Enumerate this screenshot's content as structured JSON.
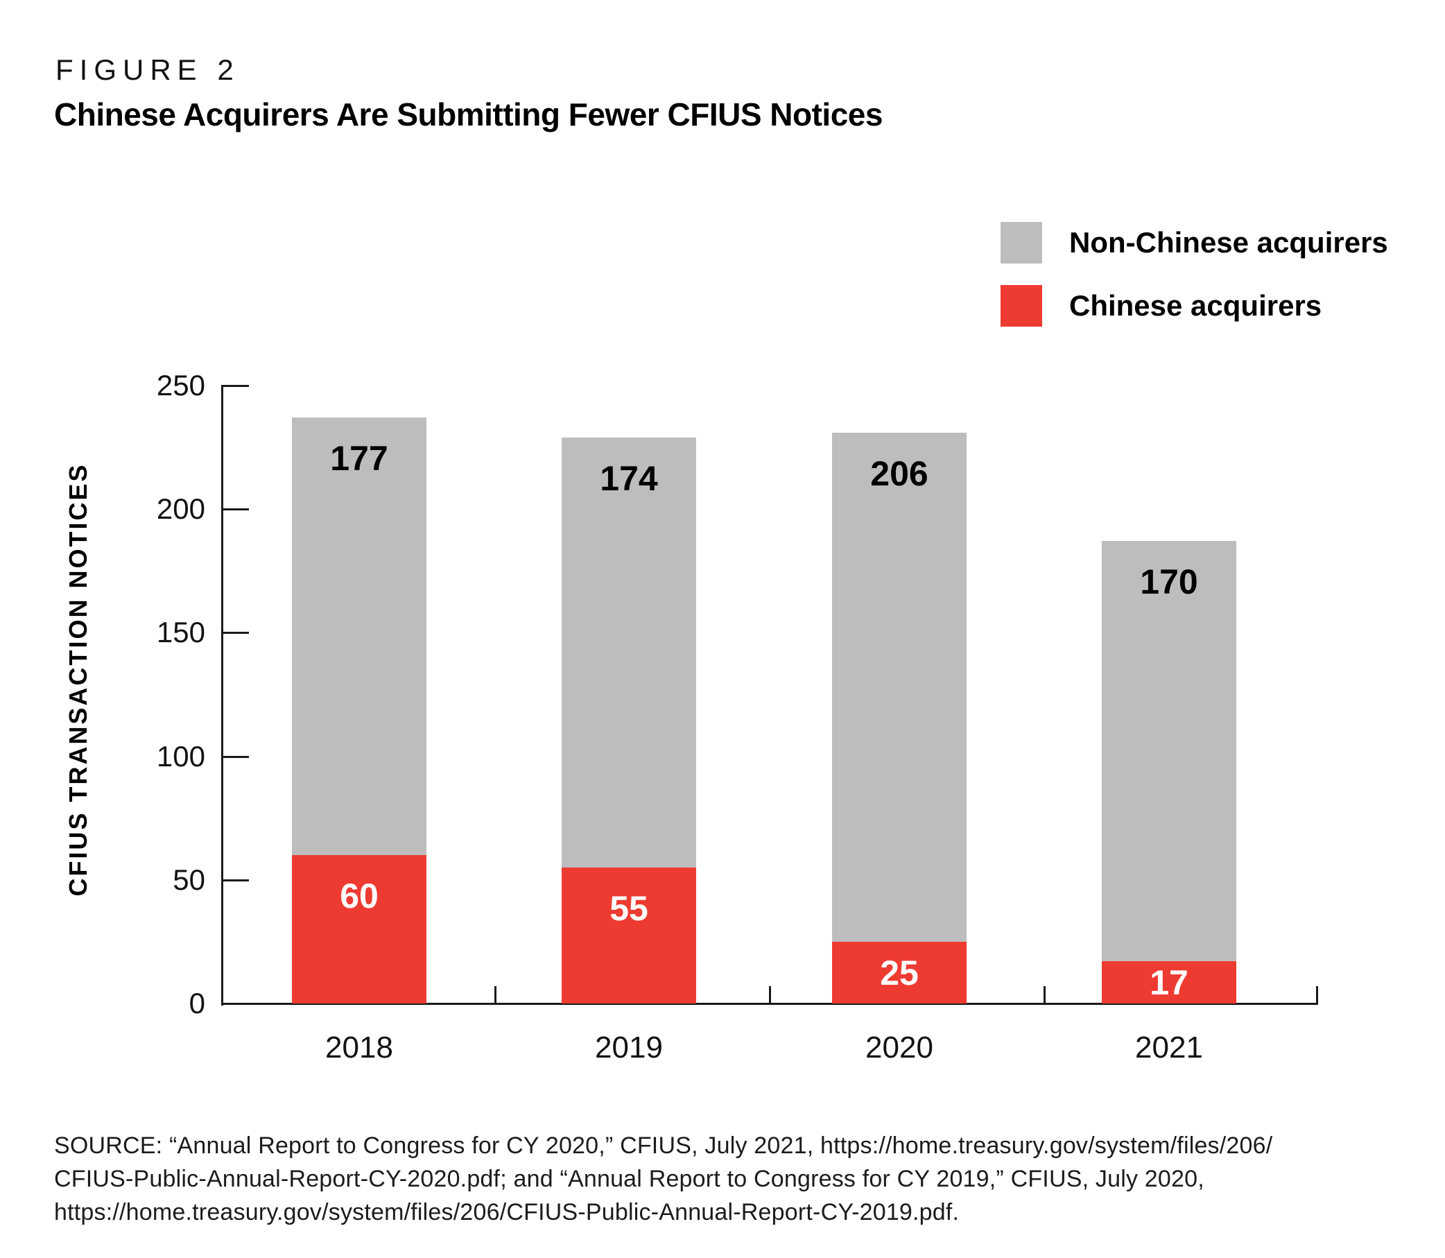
{
  "figure": {
    "label": "FIGURE 2",
    "title": "Chinese Acquirers Are Submitting Fewer CFIUS Notices"
  },
  "legend": {
    "items": [
      {
        "label": "Non-Chinese acquirers",
        "color": "#bdbdbf"
      },
      {
        "label": "Chinese acquirers",
        "color": "#ee3b32"
      }
    ]
  },
  "chart_data": {
    "type": "bar",
    "stacked": true,
    "categories": [
      "2018",
      "2019",
      "2020",
      "2021"
    ],
    "series": [
      {
        "name": "Chinese acquirers",
        "color": "#ee3b32",
        "label_color": "#ffffff",
        "values": [
          60,
          55,
          25,
          17
        ]
      },
      {
        "name": "Non-Chinese acquirers",
        "color": "#bdbdbf",
        "label_color": "#000000",
        "values": [
          177,
          174,
          206,
          170
        ]
      }
    ],
    "title": "Chinese Acquirers Are Submitting Fewer CFIUS Notices",
    "xlabel": "",
    "ylabel": "CFIUS TRANSACTION NOTICES",
    "ylim": [
      0,
      250
    ],
    "yticks": [
      0,
      50,
      100,
      150,
      200,
      250
    ],
    "legend_position": "top-right",
    "grid": false,
    "axis_color": "#1a1a1a"
  },
  "source": {
    "lines": [
      "SOURCE: “Annual Report to Congress for CY 2020,” CFIUS, July 2021, https://home.treasury.gov/system/files/206/",
      "CFIUS-Public-Annual-Report-CY-2020.pdf; and “Annual Report to Congress for CY 2019,” CFIUS, July 2020,",
      "https://home.treasury.gov/system/files/206/CFIUS-Public-Annual-Report-CY-2019.pdf."
    ]
  }
}
